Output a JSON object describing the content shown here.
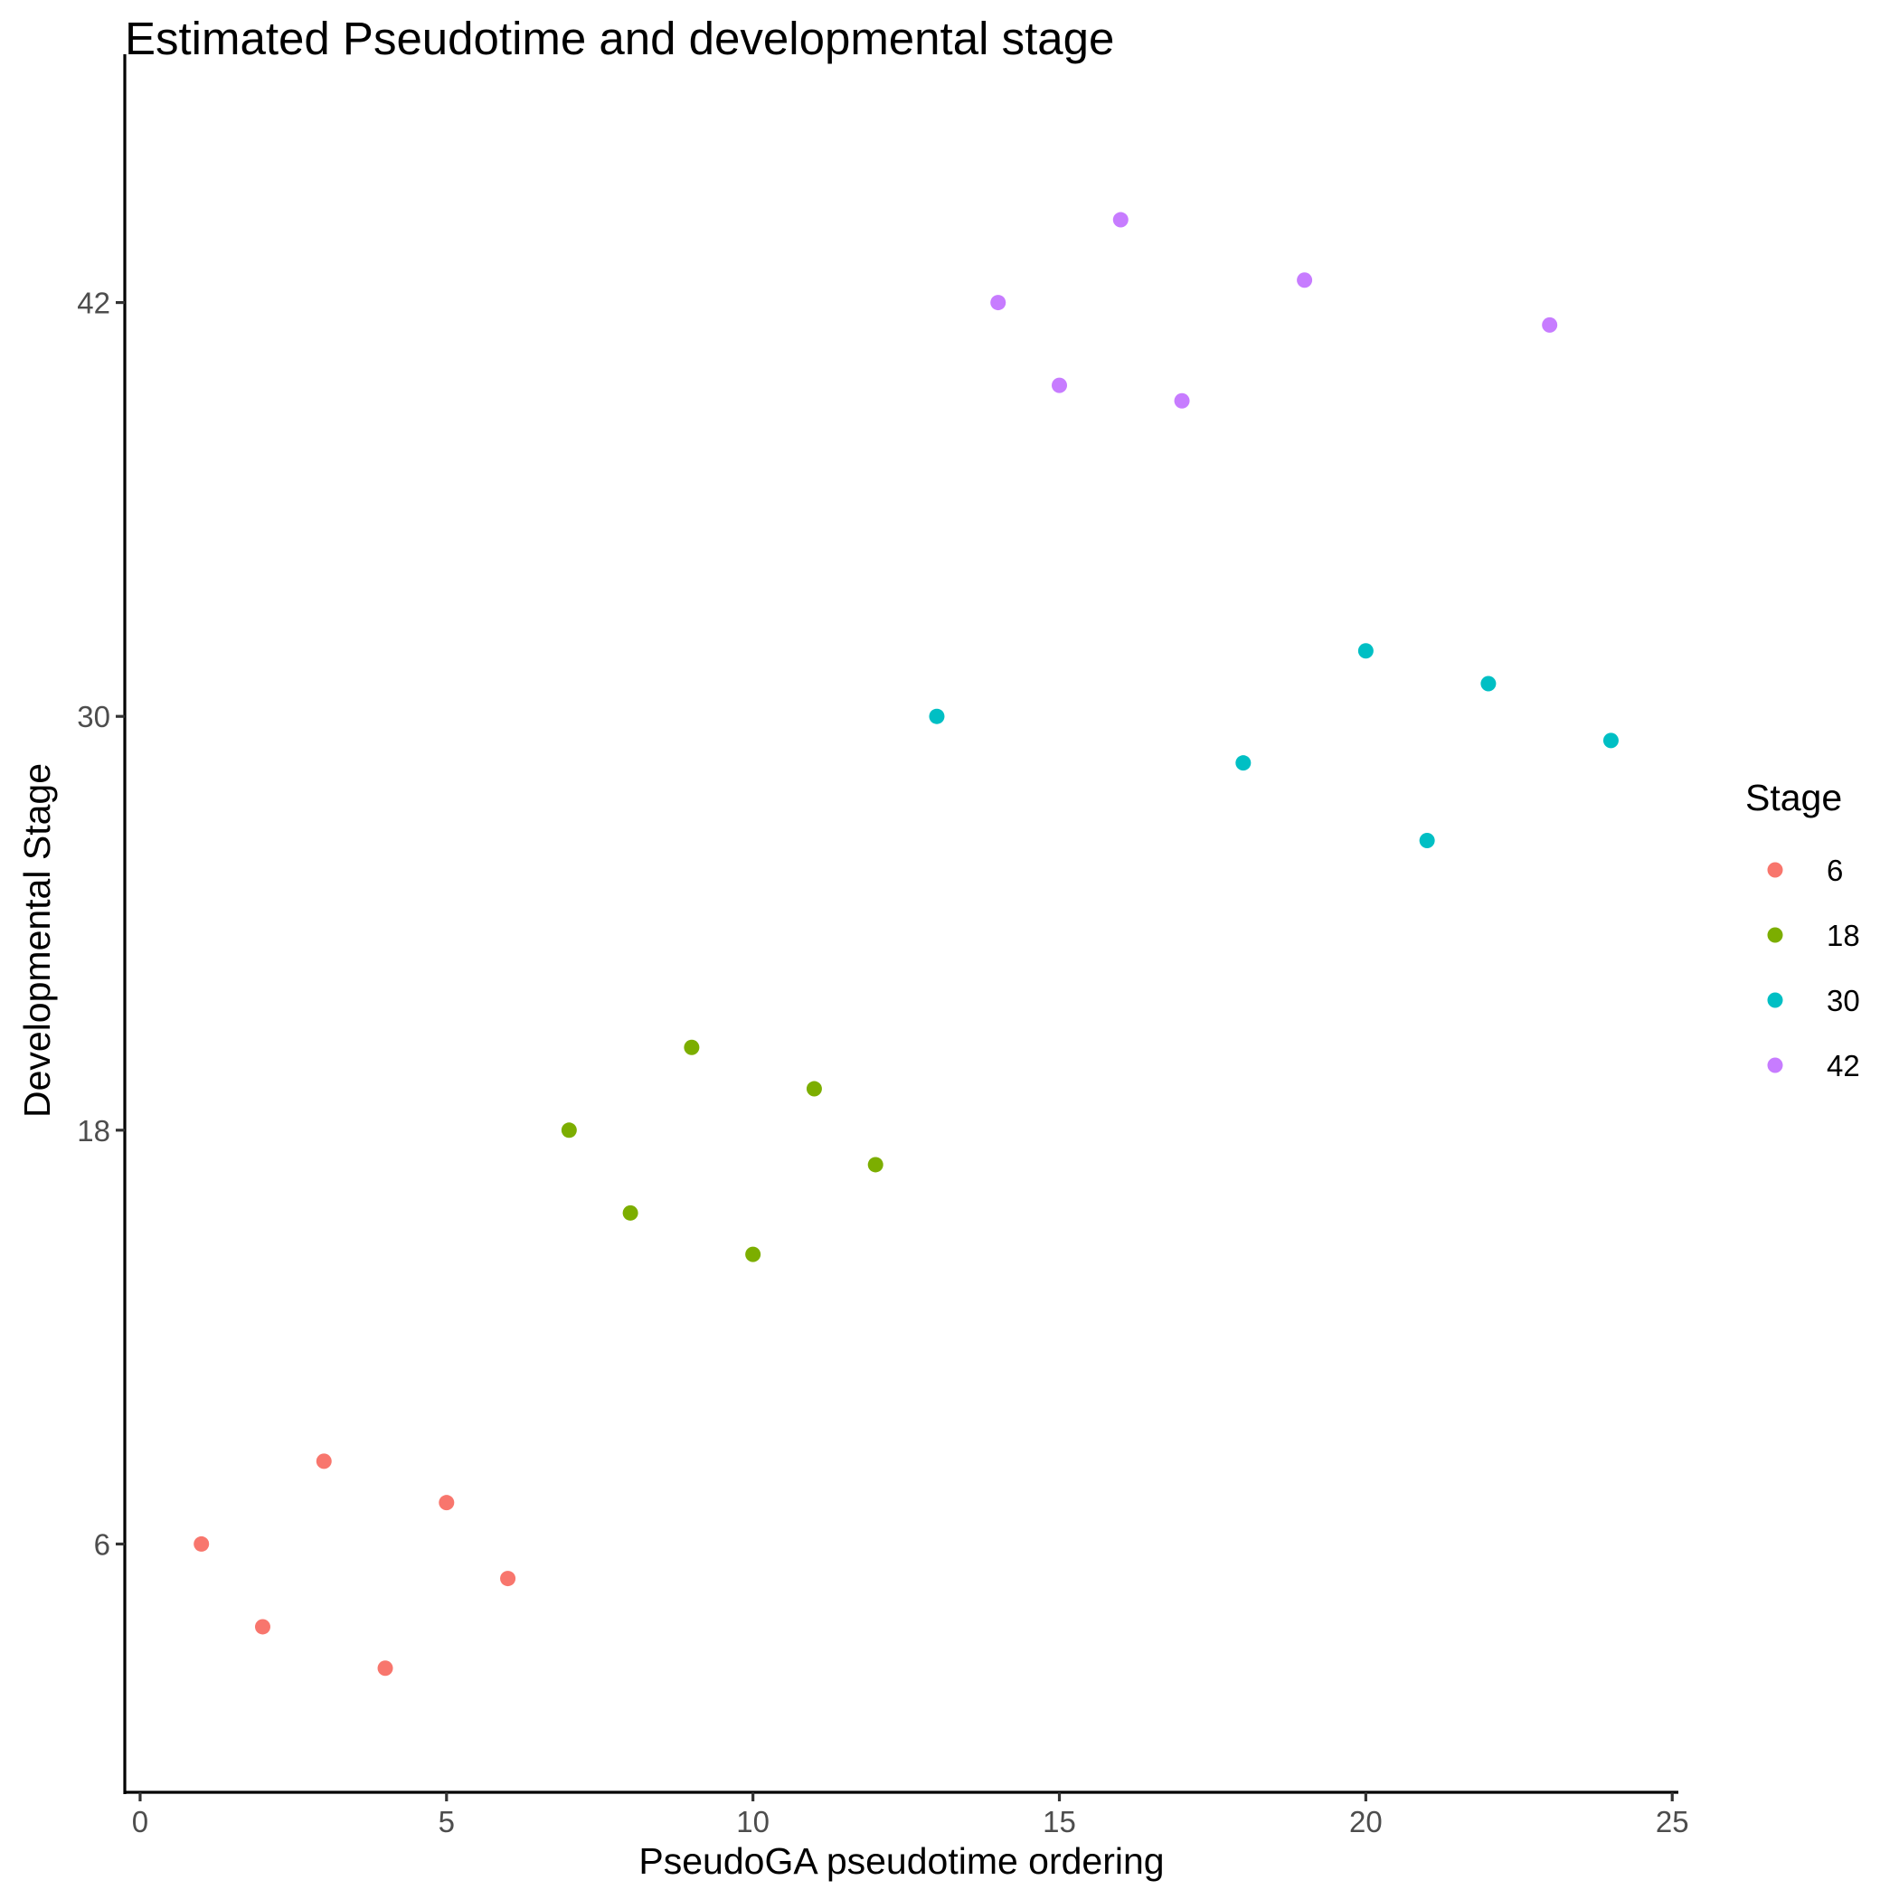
{
  "chart_data": {
    "type": "scatter",
    "title": "Estimated Pseudotime and developmental stage",
    "xlabel": "PseudoGA pseudotime ordering",
    "ylabel": "Developmental Stage",
    "xlim": [
      -0.25,
      25.1
    ],
    "ylim": [
      -1.2,
      49.2
    ],
    "x_ticks": [
      0,
      5,
      10,
      15,
      20,
      25
    ],
    "y_ticks": [
      6,
      18,
      30,
      42
    ],
    "grid": false,
    "legend_placement": "right",
    "legend": {
      "title": "Stage",
      "entries": [
        {
          "label": "6",
          "color": "#F8766D"
        },
        {
          "label": "18",
          "color": "#7CAE00"
        },
        {
          "label": "30",
          "color": "#00BFC4"
        },
        {
          "label": "42",
          "color": "#C77CFF"
        }
      ]
    },
    "series": [
      {
        "name": "6",
        "color": "#F8766D",
        "points": [
          [
            1,
            6.0
          ],
          [
            2,
            3.6
          ],
          [
            3,
            8.4
          ],
          [
            4,
            2.4
          ],
          [
            5,
            7.2
          ],
          [
            6,
            5.0
          ]
        ]
      },
      {
        "name": "18",
        "color": "#7CAE00",
        "points": [
          [
            7,
            18.0
          ],
          [
            8,
            15.6
          ],
          [
            9,
            20.4
          ],
          [
            10,
            14.4
          ],
          [
            11,
            19.2
          ],
          [
            12,
            17.0
          ]
        ]
      },
      {
        "name": "30",
        "color": "#00BFC4",
        "points": [
          [
            13,
            30.0
          ],
          [
            18,
            28.65
          ],
          [
            20,
            31.9
          ],
          [
            21,
            26.4
          ],
          [
            22,
            30.95
          ],
          [
            24,
            29.3
          ]
        ]
      },
      {
        "name": "42",
        "color": "#C77CFF",
        "points": [
          [
            14,
            42.0
          ],
          [
            15,
            39.6
          ],
          [
            16,
            44.4
          ],
          [
            17,
            39.15
          ],
          [
            19,
            42.65
          ],
          [
            23,
            41.35
          ]
        ]
      }
    ]
  }
}
